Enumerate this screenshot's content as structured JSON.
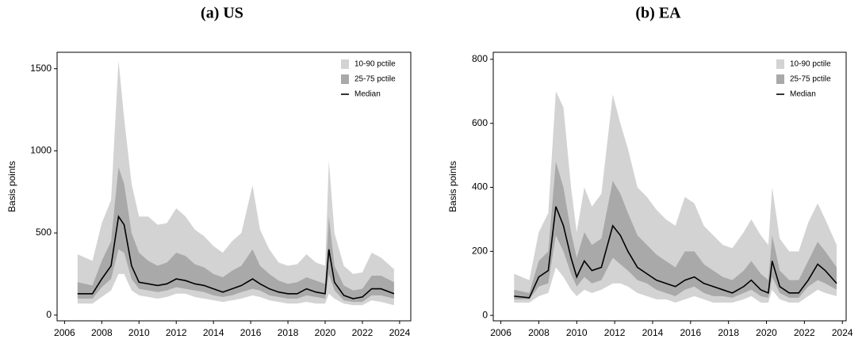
{
  "chart_data": [
    {
      "type": "fan",
      "title": "(a) US",
      "y_label": "Basis points",
      "x": [
        2006.7,
        2007.5,
        2008.0,
        2008.5,
        2008.9,
        2009.2,
        2009.6,
        2010.0,
        2010.5,
        2011.0,
        2011.5,
        2012.0,
        2012.5,
        2013.0,
        2013.5,
        2014.0,
        2014.5,
        2015.0,
        2015.5,
        2016.1,
        2016.5,
        2017.0,
        2017.5,
        2018.0,
        2018.5,
        2019.0,
        2019.5,
        2020.0,
        2020.2,
        2020.5,
        2021.0,
        2021.5,
        2022.0,
        2022.5,
        2023.0,
        2023.7
      ],
      "series": [
        {
          "name": "10-90 pctile",
          "color": "#d3d3d3",
          "lower": [
            70,
            70,
            110,
            150,
            250,
            250,
            150,
            120,
            110,
            100,
            110,
            130,
            130,
            110,
            100,
            90,
            80,
            90,
            100,
            120,
            110,
            90,
            80,
            70,
            70,
            80,
            70,
            70,
            130,
            100,
            70,
            60,
            60,
            90,
            80,
            60
          ],
          "upper": [
            370,
            330,
            560,
            700,
            1550,
            1200,
            800,
            600,
            600,
            550,
            560,
            650,
            600,
            520,
            480,
            420,
            380,
            450,
            500,
            790,
            520,
            400,
            320,
            300,
            310,
            370,
            320,
            300,
            940,
            500,
            300,
            250,
            260,
            380,
            350,
            280
          ]
        },
        {
          "name": "25-75 pctile",
          "color": "#a9a9a9",
          "lower": [
            100,
            100,
            170,
            220,
            400,
            380,
            220,
            160,
            150,
            140,
            150,
            170,
            160,
            150,
            140,
            120,
            110,
            120,
            140,
            160,
            150,
            120,
            110,
            100,
            100,
            120,
            110,
            100,
            250,
            150,
            90,
            80,
            80,
            120,
            120,
            100
          ],
          "upper": [
            200,
            180,
            330,
            450,
            900,
            800,
            500,
            380,
            330,
            300,
            320,
            380,
            360,
            310,
            290,
            250,
            230,
            270,
            300,
            400,
            300,
            250,
            210,
            190,
            200,
            230,
            210,
            190,
            600,
            300,
            180,
            150,
            160,
            240,
            240,
            200
          ]
        },
        {
          "name": "Median",
          "color": "#000000",
          "values": [
            130,
            130,
            220,
            300,
            600,
            550,
            300,
            200,
            190,
            180,
            190,
            220,
            210,
            190,
            180,
            160,
            140,
            160,
            180,
            220,
            190,
            160,
            140,
            130,
            130,
            160,
            140,
            130,
            400,
            200,
            120,
            100,
            110,
            160,
            160,
            130
          ]
        }
      ],
      "xlim": [
        2005.6,
        2024.6
      ],
      "xticks": [
        2006,
        2008,
        2010,
        2012,
        2014,
        2016,
        2018,
        2020,
        2022,
        2024
      ],
      "ylim": [
        -35,
        1600
      ],
      "yticks": [
        0,
        500,
        1000,
        1500
      ],
      "legend": "top-right"
    },
    {
      "type": "fan",
      "title": "(b) EA",
      "y_label": "Basis points",
      "x": [
        2006.7,
        2007.5,
        2008.0,
        2008.5,
        2008.9,
        2009.3,
        2009.7,
        2010.0,
        2010.4,
        2010.8,
        2011.3,
        2011.9,
        2012.3,
        2012.7,
        2013.2,
        2013.7,
        2014.2,
        2014.7,
        2015.2,
        2015.7,
        2016.2,
        2016.7,
        2017.2,
        2017.7,
        2018.2,
        2018.8,
        2019.2,
        2019.7,
        2020.1,
        2020.3,
        2020.7,
        2021.2,
        2021.7,
        2022.2,
        2022.7,
        2023.1,
        2023.7
      ],
      "series": [
        {
          "name": "10-90 pctile",
          "color": "#d3d3d3",
          "lower": [
            40,
            40,
            60,
            70,
            150,
            120,
            80,
            60,
            80,
            70,
            80,
            100,
            100,
            90,
            70,
            60,
            50,
            50,
            40,
            50,
            60,
            50,
            40,
            40,
            40,
            50,
            60,
            40,
            40,
            80,
            50,
            40,
            40,
            60,
            80,
            70,
            60
          ],
          "upper": [
            130,
            110,
            260,
            320,
            700,
            650,
            400,
            260,
            400,
            340,
            380,
            690,
            600,
            520,
            400,
            370,
            330,
            300,
            280,
            370,
            350,
            280,
            250,
            220,
            210,
            260,
            300,
            250,
            220,
            400,
            240,
            200,
            200,
            290,
            350,
            300,
            220
          ]
        },
        {
          "name": "25-75 pctile",
          "color": "#a9a9a9",
          "lower": [
            50,
            50,
            90,
            100,
            250,
            200,
            130,
            90,
            120,
            100,
            110,
            180,
            160,
            140,
            110,
            100,
            80,
            70,
            60,
            80,
            90,
            70,
            60,
            60,
            55,
            70,
            80,
            60,
            55,
            120,
            70,
            55,
            55,
            90,
            110,
            100,
            80
          ],
          "upper": [
            80,
            70,
            170,
            200,
            480,
            400,
            260,
            180,
            260,
            220,
            240,
            420,
            380,
            320,
            250,
            220,
            190,
            170,
            150,
            200,
            200,
            160,
            140,
            120,
            110,
            140,
            170,
            130,
            110,
            250,
            140,
            110,
            110,
            170,
            230,
            200,
            150
          ]
        },
        {
          "name": "Median",
          "color": "#000000",
          "values": [
            60,
            55,
            120,
            140,
            340,
            280,
            180,
            120,
            170,
            140,
            150,
            280,
            250,
            200,
            150,
            130,
            110,
            100,
            90,
            110,
            120,
            100,
            90,
            80,
            70,
            90,
            110,
            80,
            70,
            170,
            90,
            70,
            70,
            110,
            160,
            140,
            100
          ]
        }
      ],
      "xlim": [
        2005.6,
        2024.2
      ],
      "xticks": [
        2006,
        2008,
        2010,
        2012,
        2014,
        2016,
        2018,
        2020,
        2022,
        2024
      ],
      "ylim": [
        -17,
        822
      ],
      "yticks": [
        0,
        200,
        400,
        600,
        800
      ],
      "legend": "top-right"
    }
  ]
}
